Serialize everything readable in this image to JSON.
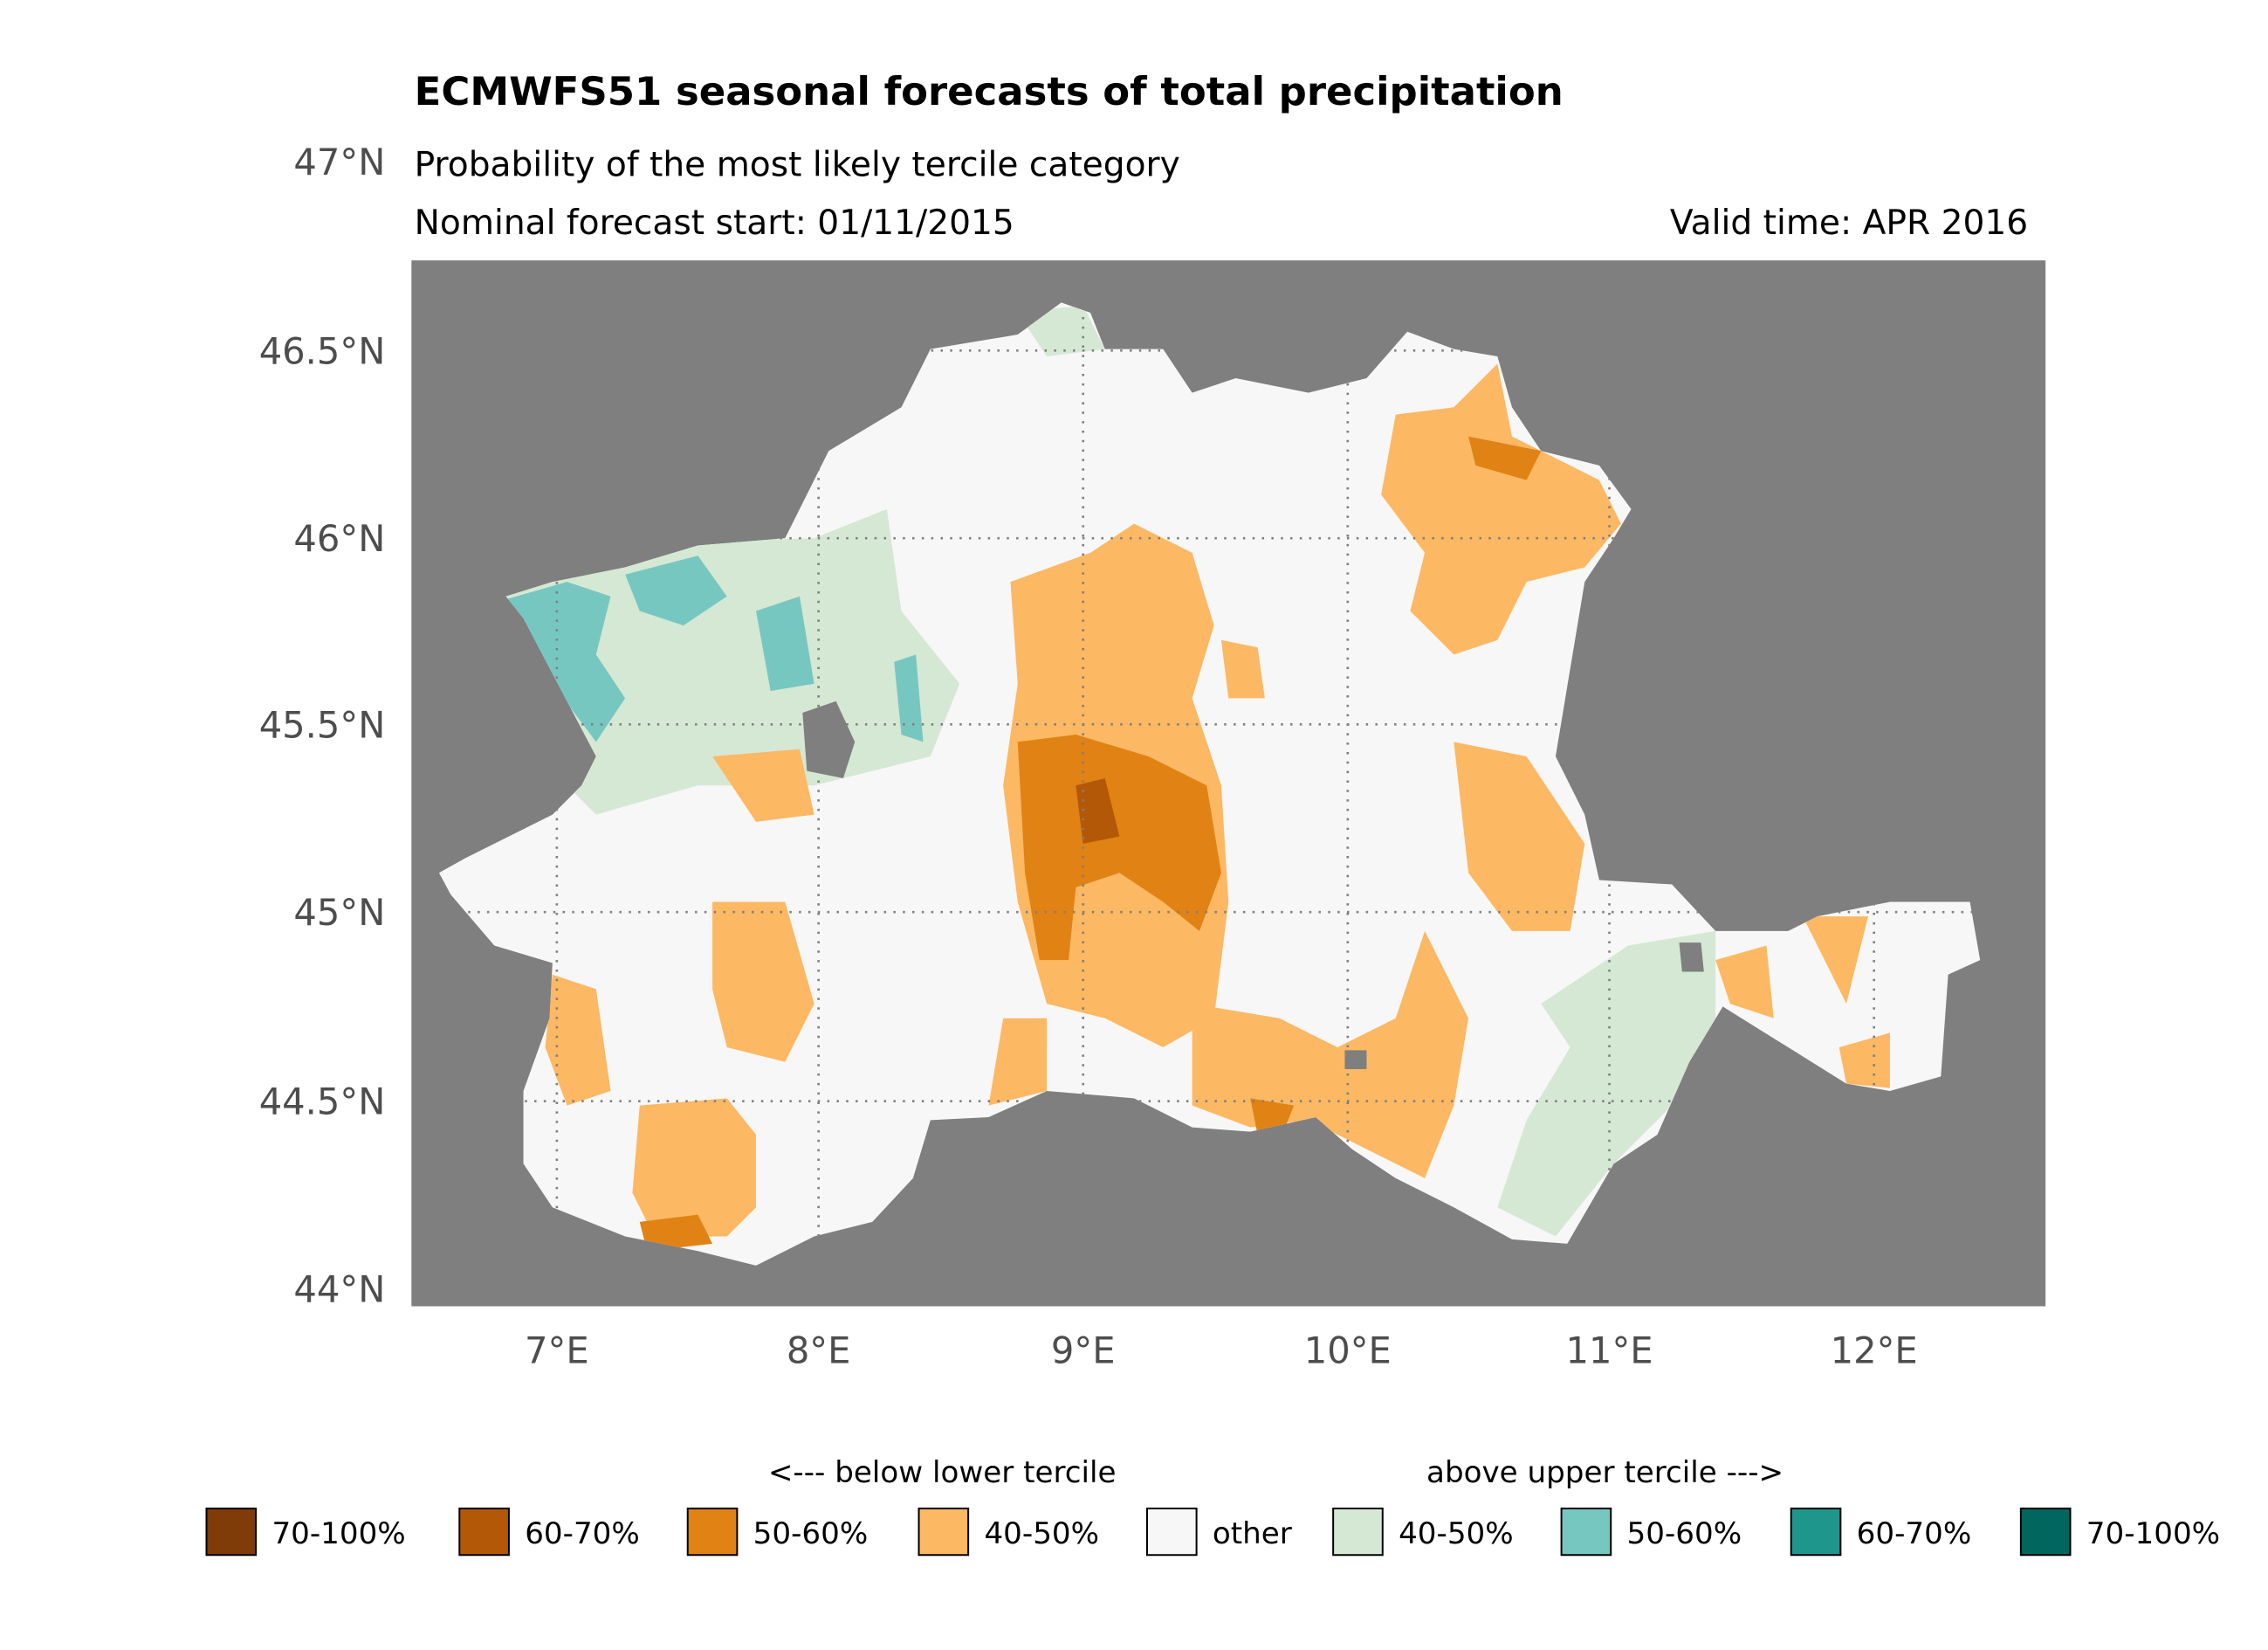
{
  "title": "ECMWFS51 seasonal forecasts of total precipitation",
  "subtitle": "Probability of the most likely tercile category",
  "forecast_start": "Nominal forecast start: 01/11/2015",
  "valid_time": "Valid time: APR 2016",
  "map": {
    "background_color": "#7f7f7f",
    "lat_labels": [
      "47°N",
      "46.5°N",
      "46°N",
      "45.5°N",
      "45°N",
      "44.5°N",
      "44°N"
    ],
    "lon_labels": [
      "7°E",
      "8°E",
      "9°E",
      "10°E",
      "11°E",
      "12°E"
    ]
  },
  "legend": {
    "below_header": "<--- below lower tercile",
    "above_header": "above upper tercile --->",
    "items": [
      {
        "label": "70-100%",
        "color": "#7f3b08"
      },
      {
        "label": "60-70%",
        "color": "#b35806"
      },
      {
        "label": "50-60%",
        "color": "#e08214"
      },
      {
        "label": "40-50%",
        "color": "#fdb863"
      },
      {
        "label": "other",
        "color": "#f7f7f7"
      },
      {
        "label": "40-50%",
        "color": "#d5e8d4"
      },
      {
        "label": "50-60%",
        "color": "#77c7c1"
      },
      {
        "label": "60-70%",
        "color": "#1f968b"
      },
      {
        "label": "70-100%",
        "color": "#01665e"
      }
    ]
  }
}
